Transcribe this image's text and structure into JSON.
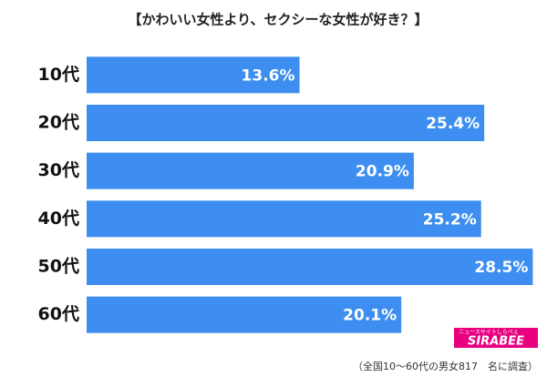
{
  "chart_data": {
    "type": "bar",
    "orientation": "horizontal",
    "title": "【かわいい女性より、セクシーな女性が好き？】",
    "categories": [
      "10代",
      "20代",
      "30代",
      "40代",
      "50代",
      "60代"
    ],
    "values": [
      13.6,
      25.4,
      20.9,
      25.2,
      28.5,
      20.1
    ],
    "value_labels": [
      "13.6%",
      "25.4%",
      "20.9%",
      "25.2%",
      "28.5%",
      "20.1%"
    ],
    "color": "#3d8ef0",
    "xlim": [
      0,
      29
    ],
    "note": "（全国10〜60代の男女817　名に調査）",
    "logo": {
      "name": "SIRABEE",
      "tagline": "ニュースサイトしらべぇ"
    }
  }
}
